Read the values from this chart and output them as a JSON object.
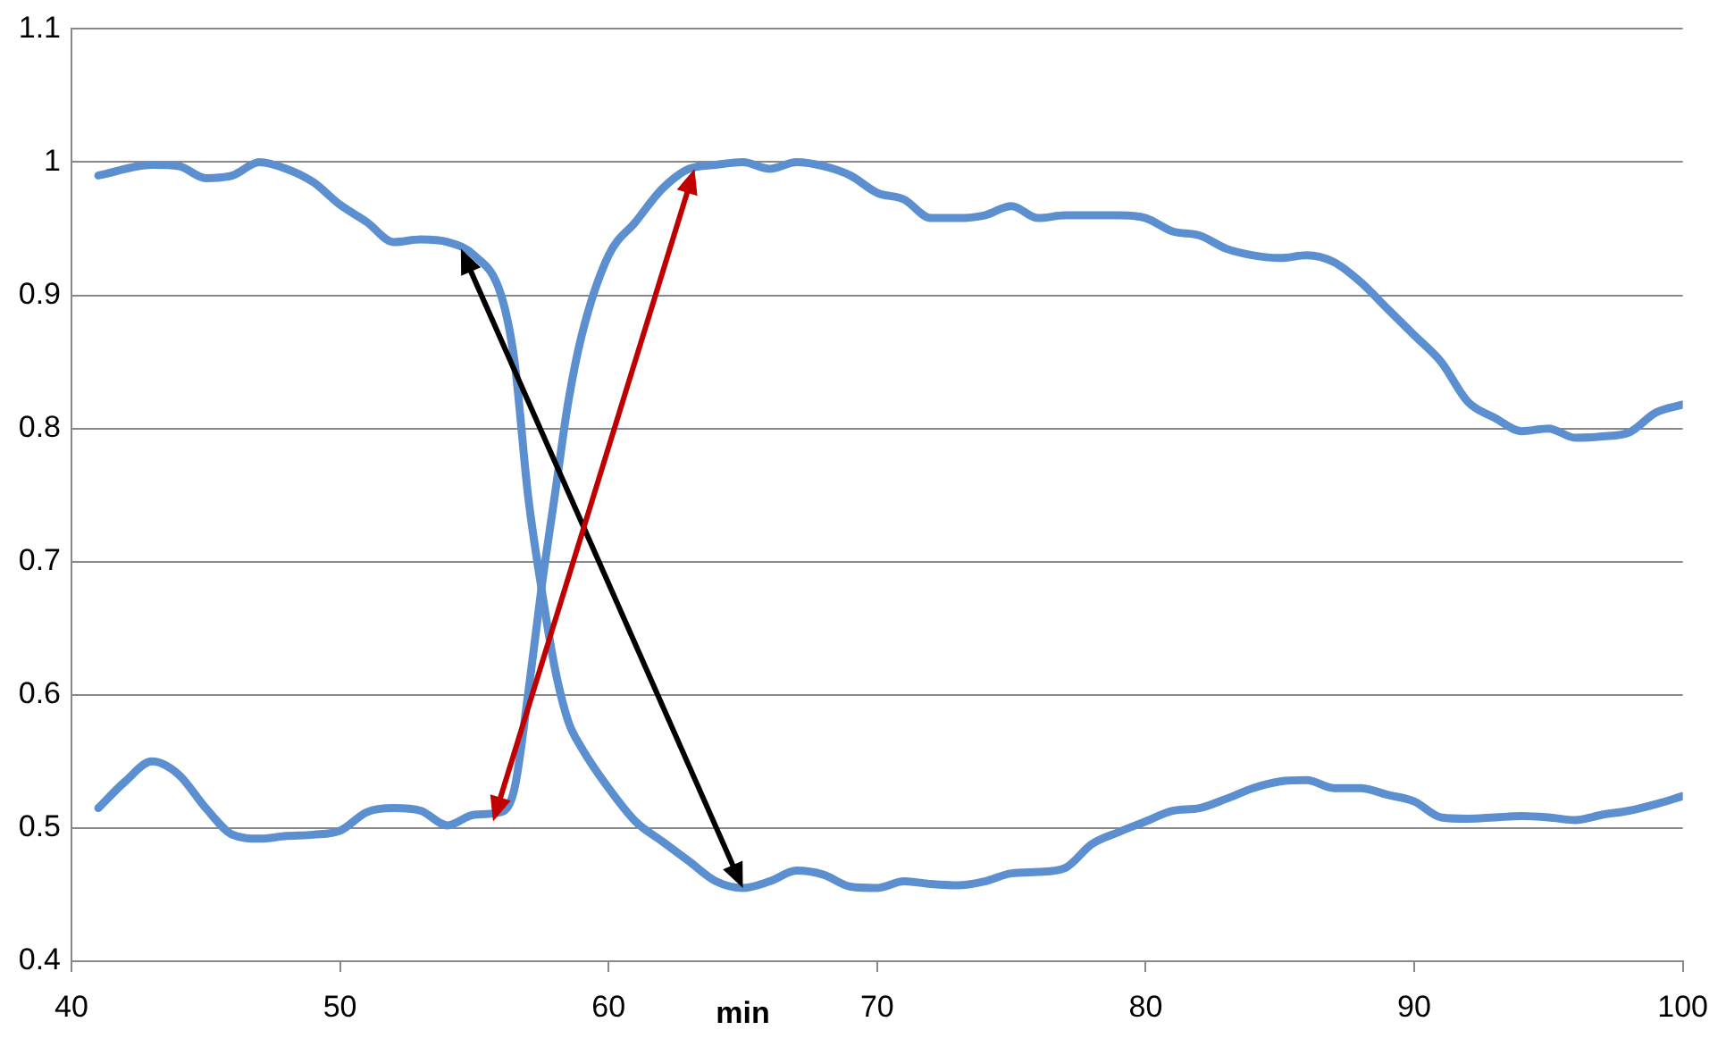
{
  "chart_data": {
    "type": "line",
    "xlabel": "min",
    "xlim": [
      40,
      100
    ],
    "xticks": [
      40,
      50,
      60,
      70,
      80,
      90,
      100
    ],
    "ylim": [
      0.4,
      1.1
    ],
    "yticks": [
      0.4,
      0.5,
      0.6,
      0.7,
      0.8,
      0.9,
      1,
      1.1
    ],
    "grid": "y",
    "legend": false,
    "marker": "none",
    "line_style": "solid",
    "series": [
      {
        "color": "#5b8fd0",
        "x": [
          41,
          43,
          44,
          45,
          46,
          47,
          48,
          49,
          50,
          51,
          52,
          53,
          54,
          55,
          56,
          56.5,
          57,
          57.5,
          58,
          58.5,
          59,
          60,
          61,
          62,
          63,
          64,
          65,
          66,
          67,
          68,
          69,
          70,
          71,
          72,
          73,
          74,
          75,
          76,
          77,
          78,
          79,
          80,
          81,
          82,
          83,
          84,
          85,
          86,
          87,
          88,
          89,
          90,
          91,
          92,
          93,
          94,
          95,
          96,
          97,
          98,
          99,
          100
        ],
        "values": [
          0.99,
          0.998,
          0.997,
          0.988,
          0.99,
          1.0,
          0.995,
          0.985,
          0.968,
          0.955,
          0.94,
          0.942,
          0.94,
          0.93,
          0.9,
          0.85,
          0.75,
          0.68,
          0.62,
          0.58,
          0.56,
          0.53,
          0.505,
          0.49,
          0.475,
          0.46,
          0.455,
          0.46,
          0.468,
          0.465,
          0.456,
          0.455,
          0.46,
          0.458,
          0.457,
          0.46,
          0.466,
          0.467,
          0.47,
          0.488,
          0.497,
          0.505,
          0.513,
          0.515,
          0.522,
          0.53,
          0.535,
          0.536,
          0.53,
          0.53,
          0.525,
          0.52,
          0.508,
          0.507,
          0.508,
          0.509,
          0.508,
          0.506,
          0.51,
          0.513,
          0.518,
          0.524
        ]
      },
      {
        "color": "#5b8fd0",
        "x": [
          41,
          42,
          43,
          44,
          45,
          46,
          47,
          48,
          49,
          50,
          51,
          52,
          53,
          54,
          55,
          56,
          56.5,
          57,
          57.5,
          58,
          58.5,
          59,
          60,
          61,
          62,
          63,
          64,
          65,
          66,
          67,
          68,
          69,
          70,
          71,
          72,
          73,
          74,
          75,
          76,
          77,
          78,
          79,
          80,
          81,
          82,
          83,
          84,
          85,
          86,
          87,
          88,
          89,
          90,
          91,
          92,
          93,
          94,
          95,
          96,
          97,
          98,
          99,
          100
        ],
        "values": [
          0.515,
          0.535,
          0.55,
          0.54,
          0.515,
          0.495,
          0.492,
          0.494,
          0.495,
          0.498,
          0.512,
          0.515,
          0.513,
          0.502,
          0.51,
          0.512,
          0.53,
          0.6,
          0.68,
          0.75,
          0.82,
          0.87,
          0.93,
          0.955,
          0.98,
          0.995,
          0.998,
          1.0,
          0.995,
          1.0,
          0.997,
          0.99,
          0.977,
          0.972,
          0.958,
          0.958,
          0.96,
          0.967,
          0.958,
          0.96,
          0.96,
          0.96,
          0.958,
          0.948,
          0.945,
          0.935,
          0.93,
          0.928,
          0.93,
          0.925,
          0.91,
          0.89,
          0.87,
          0.85,
          0.82,
          0.808,
          0.798,
          0.8,
          0.793,
          0.794,
          0.797,
          0.812,
          0.818
        ]
      }
    ]
  }
}
